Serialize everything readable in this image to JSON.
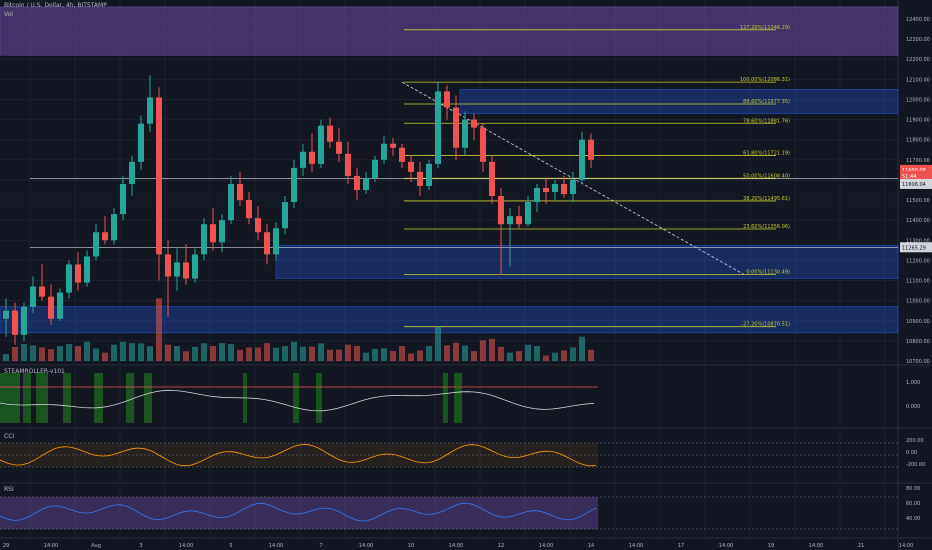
{
  "header": {
    "title": "Bitcoin / U.S. Dollar, 4h, BITSTAMP",
    "vol_label": "Vol"
  },
  "colors": {
    "bg": "#131722",
    "up": "#26a69a",
    "down": "#ef5350",
    "fib": "#c8c832",
    "zone": "#2962ff",
    "purple": "#7e57c2",
    "orange": "#ff9800",
    "rsi": "#3179f5"
  },
  "chart_data": [
    {
      "type": "candlestick",
      "title": "Bitcoin / U.S. Dollar, 4h, BITSTAMP",
      "y_ticks": [
        12400,
        12300,
        12200,
        12100,
        12000,
        11900,
        11800,
        11700,
        11600,
        11500,
        11400,
        11300,
        11200,
        11100,
        11000,
        10900,
        10800,
        10700
      ],
      "x_ticks": [
        "29",
        "14:00",
        "Aug",
        "3",
        "14:00",
        "5",
        "14:00",
        "7",
        "14:00",
        "10",
        "14:00",
        "12",
        "14:00",
        "14",
        "14:00",
        "17",
        "14:00",
        "19",
        "14:00",
        "21",
        "14:00"
      ],
      "price_labels": [
        "11600.08",
        "51:44",
        "11606.04",
        "11265.29"
      ],
      "fib_levels": [
        {
          "label": "127.20%(12346.29)",
          "value": 12346.29
        },
        {
          "label": "100.00%(12086.31)",
          "value": 12086.31
        },
        {
          "label": "88.60%(11977.35)",
          "value": 11977.35
        },
        {
          "label": "78.60%(11881.76)",
          "value": 11881.76
        },
        {
          "label": "61.80%(11721.19)",
          "value": 11721.19
        },
        {
          "label": "50.00%(11608.40)",
          "value": 11608.4
        },
        {
          "label": "38.20%(11495.61)",
          "value": 11495.61
        },
        {
          "label": "23.60%(11356.06)",
          "value": 11356.06
        },
        {
          "label": "0.00%(11130.49)",
          "value": 11130.49
        },
        {
          "label": "-27.20%(10870.51)",
          "value": 10870.51
        }
      ],
      "horizontal_lines": [
        11606.04,
        11265.29
      ],
      "zones": [
        {
          "from": 12460,
          "to": 12220,
          "color": "purple"
        },
        {
          "from": 12050,
          "to": 11930,
          "color": "blue"
        },
        {
          "from": 11275,
          "to": 11110,
          "color": "blue"
        },
        {
          "from": 10970,
          "to": 10840,
          "color": "blue"
        }
      ],
      "trendline": {
        "from": [
          11,
          12086
        ],
        "to": [
          17.5,
          11130
        ]
      },
      "ohlc": [
        [
          10910,
          11010,
          10820,
          10950
        ],
        [
          10950,
          10990,
          10780,
          10830
        ],
        [
          10830,
          10990,
          10800,
          10970
        ],
        [
          10970,
          11120,
          10940,
          11070
        ],
        [
          11070,
          11180,
          11000,
          11020
        ],
        [
          11020,
          11080,
          10880,
          10910
        ],
        [
          10910,
          11060,
          10900,
          11040
        ],
        [
          11040,
          11200,
          11010,
          11180
        ],
        [
          11180,
          11240,
          11050,
          11090
        ],
        [
          11090,
          11250,
          11070,
          11220
        ],
        [
          11220,
          11380,
          11200,
          11340
        ],
        [
          11340,
          11420,
          11280,
          11300
        ],
        [
          11300,
          11460,
          11280,
          11430
        ],
        [
          11430,
          11620,
          11400,
          11580
        ],
        [
          11580,
          11720,
          11520,
          11690
        ],
        [
          11690,
          11920,
          11650,
          11880
        ],
        [
          11880,
          12120,
          11840,
          12010
        ],
        [
          12010,
          12060,
          11100,
          11230
        ],
        [
          11230,
          11300,
          10920,
          11120
        ],
        [
          11120,
          11260,
          11050,
          11190
        ],
        [
          11190,
          11280,
          11080,
          11110
        ],
        [
          11110,
          11260,
          11090,
          11230
        ],
        [
          11230,
          11410,
          11200,
          11380
        ],
        [
          11380,
          11460,
          11250,
          11290
        ],
        [
          11290,
          11430,
          11240,
          11400
        ],
        [
          11400,
          11620,
          11380,
          11580
        ],
        [
          11580,
          11640,
          11470,
          11500
        ],
        [
          11500,
          11540,
          11380,
          11410
        ],
        [
          11410,
          11470,
          11300,
          11340
        ],
        [
          11340,
          11380,
          11180,
          11230
        ],
        [
          11230,
          11390,
          11200,
          11360
        ],
        [
          11360,
          11520,
          11330,
          11490
        ],
        [
          11490,
          11700,
          11460,
          11660
        ],
        [
          11660,
          11780,
          11620,
          11740
        ],
        [
          11740,
          11830,
          11640,
          11680
        ],
        [
          11680,
          11900,
          11660,
          11870
        ],
        [
          11870,
          11910,
          11760,
          11790
        ],
        [
          11790,
          11860,
          11690,
          11730
        ],
        [
          11730,
          11790,
          11580,
          11620
        ],
        [
          11620,
          11660,
          11500,
          11550
        ],
        [
          11550,
          11640,
          11530,
          11610
        ],
        [
          11610,
          11720,
          11590,
          11700
        ],
        [
          11700,
          11820,
          11680,
          11780
        ],
        [
          11780,
          11810,
          11720,
          11760
        ],
        [
          11760,
          11780,
          11660,
          11690
        ],
        [
          11690,
          11720,
          11590,
          11640
        ],
        [
          11640,
          11690,
          11520,
          11570
        ],
        [
          11570,
          11700,
          11550,
          11680
        ],
        [
          11680,
          12086,
          11660,
          12040
        ],
        [
          12040,
          12070,
          11900,
          11960
        ],
        [
          11960,
          12020,
          11700,
          11760
        ],
        [
          11760,
          11940,
          11720,
          11900
        ],
        [
          11900,
          11930,
          11800,
          11860
        ],
        [
          11860,
          11880,
          11640,
          11690
        ],
        [
          11690,
          11720,
          11480,
          11520
        ],
        [
          11520,
          11560,
          11130,
          11380
        ],
        [
          11380,
          11460,
          11170,
          11420
        ],
        [
          11420,
          11470,
          11360,
          11380
        ],
        [
          11380,
          11520,
          11370,
          11490
        ],
        [
          11490,
          11580,
          11440,
          11560
        ],
        [
          11560,
          11610,
          11480,
          11540
        ],
        [
          11540,
          11600,
          11500,
          11580
        ],
        [
          11580,
          11620,
          11510,
          11530
        ],
        [
          11530,
          11640,
          11490,
          11600
        ],
        [
          11600,
          11840,
          11580,
          11800
        ],
        [
          11800,
          11830,
          11660,
          11700
        ]
      ]
    },
    {
      "type": "bar",
      "name": "Vol"
    },
    {
      "type": "line",
      "name": "STEAMROLLER-v101",
      "y_ticks": [
        "1.000",
        "0.000"
      ]
    },
    {
      "type": "line",
      "name": "CCI",
      "y_ticks": [
        "200.00",
        "0.00",
        "-200.00"
      ]
    },
    {
      "type": "line",
      "name": "RSI",
      "y_ticks": [
        "80.00",
        "60.00",
        "40.00"
      ]
    }
  ]
}
